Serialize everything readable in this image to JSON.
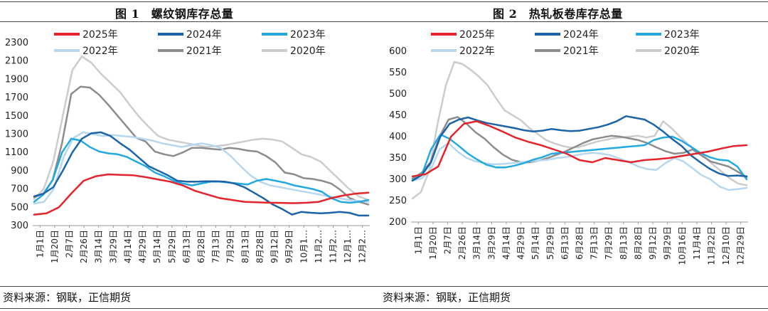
{
  "charts": [
    {
      "title": "图 1　螺纹钢库存总量",
      "source": "资料来源：钢联，正信期货"
    },
    {
      "title": "图 2　热轧板卷库存总量",
      "source": "资料来源：钢联，正信期货"
    }
  ],
  "chart_data": [
    {
      "type": "line",
      "title": "图 1　螺纹钢库存总量",
      "ylim": [
        300,
        2300
      ],
      "yticks": [
        300,
        500,
        700,
        900,
        1100,
        1300,
        1500,
        1700,
        1900,
        2100,
        2300
      ],
      "grid": false,
      "legend": "top",
      "x_labels": [
        "1月1日",
        "1月20日",
        "2月7日",
        "2月26日",
        "3月14日",
        "3月29日",
        "4月14日",
        "4月29日",
        "5月14日",
        "5月29日",
        "6月13日",
        "6月28日",
        "7月13日",
        "7月29日",
        "8月13日",
        "8月28日",
        "9月12日",
        "9月29日",
        "10月1…",
        "11月2…",
        "11月2…",
        "12月1…",
        "12月2…"
      ],
      "series": [
        {
          "name": "2025年",
          "color": "#e3242b",
          "width": 2.5,
          "values": [
            420,
            435,
            500,
            650,
            790,
            840,
            860,
            855,
            850,
            830,
            805,
            780,
            740,
            680,
            640,
            600,
            580,
            560,
            555,
            550,
            548,
            545,
            550,
            560,
            600,
            630,
            650,
            660
          ]
        },
        {
          "name": "2024年",
          "color": "#1c64a8",
          "width": 2.5,
          "values": [
            620,
            650,
            720,
            900,
            1100,
            1250,
            1310,
            1320,
            1280,
            1200,
            1130,
            1040,
            950,
            900,
            850,
            790,
            780,
            780,
            785,
            785,
            780,
            760,
            720,
            660,
            600,
            530,
            480,
            420,
            450,
            440,
            435,
            440,
            450,
            440,
            410,
            410
          ]
        },
        {
          "name": "2023年",
          "color": "#22a9e0",
          "width": 2.5,
          "values": [
            560,
            640,
            800,
            1100,
            1250,
            1230,
            1160,
            1110,
            1090,
            1080,
            1050,
            1000,
            950,
            880,
            840,
            790,
            760,
            740,
            760,
            780,
            780,
            770,
            760,
            750,
            790,
            810,
            790,
            770,
            740,
            720,
            700,
            670,
            600,
            560,
            550,
            560,
            580
          ]
        },
        {
          "name": "2022年",
          "color": "#b7d7ef",
          "width": 2.5,
          "values": [
            540,
            560,
            700,
            1050,
            1260,
            1320,
            1300,
            1280,
            1290,
            1280,
            1270,
            1250,
            1230,
            1200,
            1180,
            1160,
            1180,
            1200,
            1180,
            1150,
            1060,
            950,
            850,
            780,
            740,
            720,
            700,
            680,
            660,
            640,
            620,
            600,
            580,
            570,
            560
          ]
        },
        {
          "name": "2021年",
          "color": "#8c8c8c",
          "width": 2.5,
          "values": [
            610,
            650,
            800,
            1200,
            1740,
            1820,
            1810,
            1730,
            1620,
            1500,
            1380,
            1260,
            1220,
            1110,
            1080,
            1060,
            1100,
            1150,
            1150,
            1140,
            1130,
            1150,
            1140,
            1120,
            1110,
            1060,
            990,
            880,
            860,
            820,
            810,
            790,
            760,
            690,
            600,
            560,
            530
          ]
        },
        {
          "name": "2020年",
          "color": "#cccccc",
          "width": 2.5,
          "values": [
            590,
            700,
            1000,
            1500,
            2000,
            2150,
            2080,
            1960,
            1860,
            1760,
            1620,
            1490,
            1380,
            1280,
            1240,
            1220,
            1200,
            1180,
            1160,
            1170,
            1180,
            1200,
            1220,
            1240,
            1250,
            1240,
            1220,
            1150,
            1080,
            1050,
            1000,
            900,
            800,
            700,
            620,
            580
          ]
        }
      ]
    },
    {
      "type": "line",
      "title": "图 2　热轧板卷库存总量",
      "ylim": [
        200,
        600
      ],
      "yticks": [
        200,
        250,
        300,
        350,
        400,
        450,
        500,
        550,
        600
      ],
      "grid": false,
      "legend": "top",
      "x_labels": [
        "1月1日",
        "1月20日",
        "2月7日",
        "2月26日",
        "3月14日",
        "3月29日",
        "4月14日",
        "4月29日",
        "5月14日",
        "5月29日",
        "6月13日",
        "6月28日",
        "7月13日",
        "7月29日",
        "8月13日",
        "8月28日",
        "9月12日",
        "9月29日",
        "10月16日",
        "11月4日",
        "11月22日",
        "12月10日",
        "12月29日"
      ],
      "series": [
        {
          "name": "2025年",
          "color": "#e3242b",
          "width": 2.5,
          "values": [
            307,
            312,
            330,
            400,
            430,
            436,
            425,
            412,
            398,
            388,
            380,
            370,
            360,
            345,
            340,
            350,
            345,
            340,
            345,
            347,
            350,
            355,
            360,
            365,
            372,
            378,
            380
          ]
        },
        {
          "name": "2024年",
          "color": "#1c64a8",
          "width": 2.5,
          "values": [
            297,
            310,
            340,
            400,
            430,
            440,
            445,
            438,
            432,
            428,
            424,
            420,
            415,
            412,
            414,
            418,
            415,
            413,
            414,
            418,
            422,
            428,
            436,
            448,
            444,
            440,
            428,
            412,
            394,
            378,
            356,
            340,
            325,
            314,
            308,
            309,
            307
          ]
        },
        {
          "name": "2023年",
          "color": "#22a9e0",
          "width": 2.5,
          "values": [
            298,
            310,
            370,
            405,
            395,
            378,
            360,
            346,
            334,
            328,
            328,
            332,
            338,
            346,
            352,
            360,
            362,
            364,
            366,
            368,
            370,
            372,
            374,
            376,
            378,
            380,
            392,
            398,
            400,
            390,
            376,
            362,
            352,
            346,
            344,
            330,
            300
          ]
        },
        {
          "name": "2022年",
          "color": "#b7d7ef",
          "width": 2.5,
          "values": [
            297,
            302,
            322,
            370,
            385,
            365,
            350,
            342,
            338,
            335,
            336,
            338,
            340,
            342,
            344,
            346,
            350,
            352,
            356,
            360,
            362,
            360,
            356,
            348,
            340,
            330,
            324,
            322,
            338,
            350,
            342,
            326,
            310,
            300,
            283,
            275,
            277,
            280
          ]
        },
        {
          "name": "2021年",
          "color": "#8c8c8c",
          "width": 2.5,
          "values": [
            302,
            315,
            340,
            400,
            440,
            446,
            430,
            410,
            395,
            375,
            358,
            346,
            340,
            340,
            344,
            350,
            358,
            366,
            376,
            386,
            394,
            398,
            402,
            400,
            396,
            392,
            385,
            375,
            366,
            360,
            362,
            370,
            356,
            342,
            336,
            330,
            318,
            305
          ]
        },
        {
          "name": "2020年",
          "color": "#cccccc",
          "width": 2.5,
          "values": [
            255,
            270,
            320,
            430,
            520,
            575,
            570,
            556,
            540,
            520,
            490,
            462,
            450,
            438,
            420,
            406,
            392,
            384,
            378,
            374,
            376,
            382,
            388,
            392,
            396,
            398,
            400,
            402,
            398,
            402,
            436,
            420,
            400,
            382,
            368,
            352,
            334,
            318,
            302,
            290,
            286
          ]
        }
      ]
    }
  ]
}
